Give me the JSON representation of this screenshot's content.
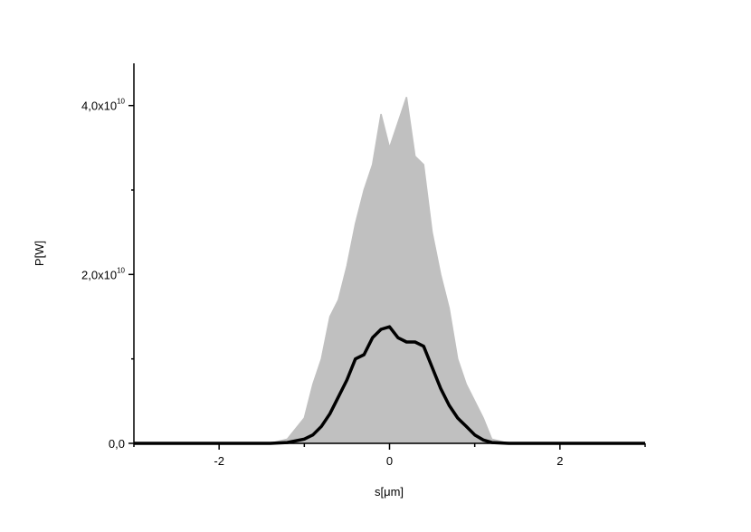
{
  "chart_data": {
    "type": "line",
    "xlabel": "s[μm]",
    "ylabel": "P[W]",
    "xlim": [
      -3,
      3
    ],
    "ylim": [
      0,
      45000000000.0
    ],
    "xticks": [
      -2,
      0,
      2
    ],
    "xticks_minor": [
      -3,
      -1,
      1,
      3
    ],
    "yticks": [
      {
        "value": 0,
        "label": "0,0"
      },
      {
        "value": 20000000000.0,
        "label": "2,0x10",
        "label_exponent": "10"
      },
      {
        "value": 40000000000.0,
        "label": "4,0x10",
        "label_exponent": "10"
      }
    ],
    "yticks_minor": [
      10000000000.0,
      30000000000.0
    ],
    "grid": false,
    "x": [
      -3,
      -1.4,
      -1.2,
      -1.0,
      -0.9,
      -0.8,
      -0.7,
      -0.6,
      -0.5,
      -0.4,
      -0.3,
      -0.2,
      -0.1,
      0,
      0.1,
      0.2,
      0.3,
      0.4,
      0.5,
      0.6,
      0.7,
      0.8,
      0.9,
      1.0,
      1.1,
      1.2,
      1.4,
      3
    ],
    "series": [
      {
        "color": "#c0c0c0",
        "fill": true,
        "values": [
          0,
          0,
          500000000.0,
          3000000000.0,
          7000000000.0,
          10000000000.0,
          15000000000.0,
          17000000000.0,
          21000000000.0,
          26000000000.0,
          30000000000.0,
          33000000000.0,
          39000000000.0,
          35000000000.0,
          38000000000.0,
          41000000000.0,
          34000000000.0,
          33000000000.0,
          25000000000.0,
          20000000000.0,
          16000000000.0,
          10000000000.0,
          7000000000.0,
          5000000000.0,
          3000000000.0,
          500000000.0,
          0,
          0
        ]
      },
      {
        "color": "#000000",
        "fill": false,
        "values": [
          0,
          0,
          100000000.0,
          500000000.0,
          1000000000.0,
          2000000000.0,
          3500000000.0,
          5500000000.0,
          7500000000.0,
          10000000000.0,
          10500000000.0,
          12500000000.0,
          13500000000.0,
          13800000000.0,
          12500000000.0,
          12000000000.0,
          12000000000.0,
          11500000000.0,
          9000000000.0,
          6500000000.0,
          4500000000.0,
          3000000000.0,
          2000000000.0,
          1000000000.0,
          400000000.0,
          100000000.0,
          0,
          0
        ]
      }
    ]
  }
}
